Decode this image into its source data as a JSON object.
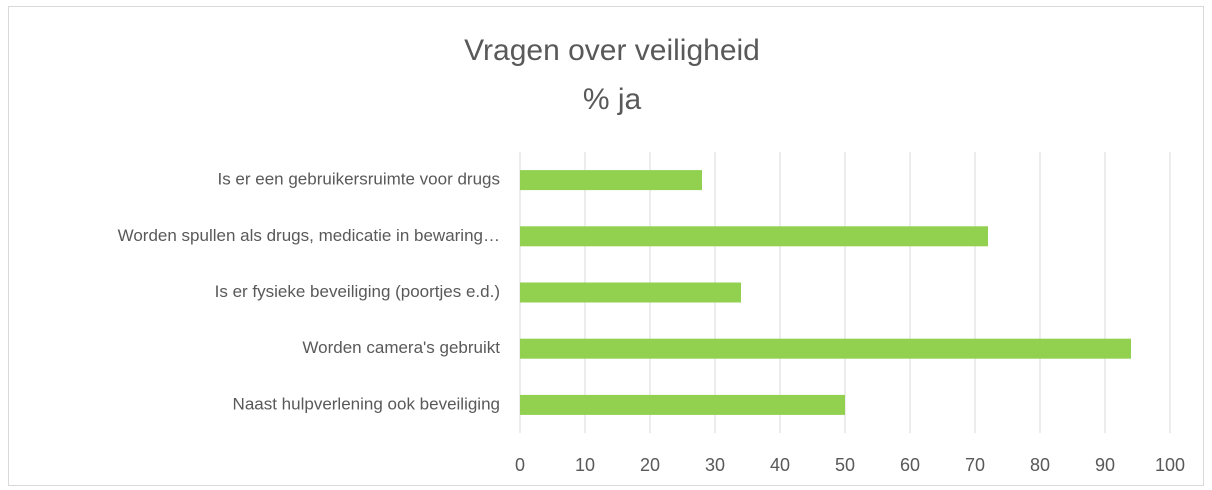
{
  "chart_data": {
    "type": "hbar",
    "title": "Vragen over veiligheid",
    "subtitle": "% ja",
    "categories": [
      "Is er een gebruikersruimte voor drugs",
      "Worden spullen als drugs, medicatie in bewaring…",
      "Is er fysieke beveiliging (poortjes  e.d.)",
      "Worden camera's gebruikt",
      "Naast hulpverlening ook beveiliging"
    ],
    "values": [
      28,
      72,
      34,
      94,
      50
    ],
    "color": "#92d050",
    "xlim": [
      0,
      100
    ],
    "xticks": [
      0,
      10,
      20,
      30,
      40,
      50,
      60,
      70,
      80,
      90,
      100
    ],
    "grid": true
  }
}
